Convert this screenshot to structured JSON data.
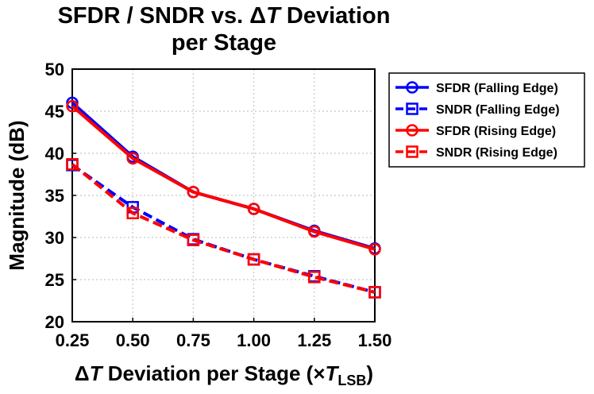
{
  "chart_data": {
    "type": "line",
    "title_line1": "SFDR / SNDR vs. ",
    "title_delta": "Δ",
    "title_T": "T",
    "title_rest": " Deviation",
    "title_line2": "per Stage",
    "ylabel": "Magnitude (dB)",
    "xlabel_delta": "Δ",
    "xlabel_T": "T",
    "xlabel_mid": " Deviation per Stage (×",
    "xlabel_T2": "T",
    "xlabel_sub": "LSB",
    "xlabel_end": ")",
    "x": [
      0.25,
      0.5,
      0.75,
      1.0,
      1.25,
      1.5
    ],
    "xticks": [
      "0.25",
      "0.50",
      "0.75",
      "1.00",
      "1.25",
      "1.50"
    ],
    "yticks": [
      "20",
      "25",
      "30",
      "35",
      "40",
      "45",
      "50"
    ],
    "xlim": [
      0.25,
      1.5
    ],
    "ylim": [
      20,
      50
    ],
    "grid": true,
    "legend_position": "right",
    "series": [
      {
        "name": "SFDR (Falling Edge)",
        "color": "#0000ff",
        "marker": "circle",
        "dashed": false,
        "values": [
          46.0,
          39.6,
          35.4,
          33.4,
          30.8,
          28.7
        ]
      },
      {
        "name": "SNDR (Falling Edge)",
        "color": "#0000ff",
        "marker": "square",
        "dashed": true,
        "values": [
          38.6,
          33.6,
          29.8,
          27.4,
          25.4,
          23.5
        ]
      },
      {
        "name": "SFDR (Rising Edge)",
        "color": "#ff0000",
        "marker": "circle",
        "dashed": false,
        "values": [
          45.6,
          39.4,
          35.4,
          33.4,
          30.7,
          28.6
        ]
      },
      {
        "name": "SNDR (Rising Edge)",
        "color": "#ff0000",
        "marker": "square",
        "dashed": true,
        "values": [
          38.7,
          32.9,
          29.7,
          27.4,
          25.3,
          23.5
        ]
      }
    ]
  }
}
